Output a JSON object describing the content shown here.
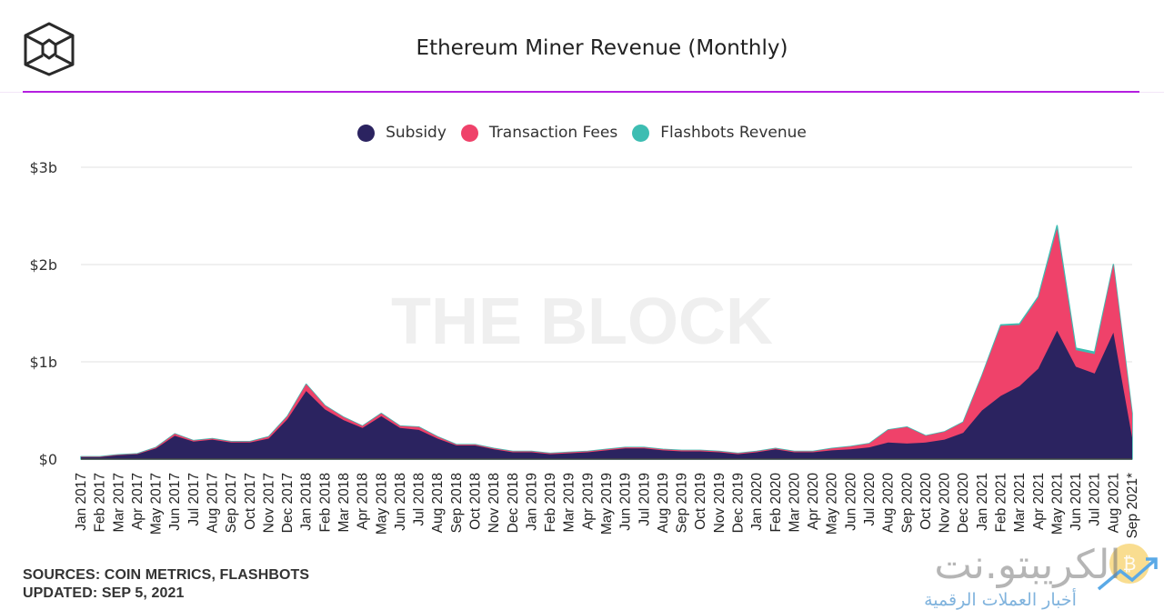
{
  "header": {
    "title": "Ethereum Miner Revenue (Monthly)",
    "logo_icon": "the-block-cube-icon"
  },
  "colors": {
    "subsidy": "#2b2360",
    "transaction_fees": "#ef426a",
    "flashbots": "#3dbdb2",
    "accent_rule": "#b41ee0"
  },
  "watermark": "THE BLOCK",
  "footer": {
    "sources": "SOURCES: COIN METRICS, FLASHBOTS",
    "updated": "UPDATED: SEP 5, 2021"
  },
  "overlay_watermark": {
    "name": "الكريبتو.نت",
    "tagline": "أخبار العملات الرقمية"
  },
  "chart_data": {
    "type": "area",
    "stacked": true,
    "title": "Ethereum Miner Revenue (Monthly)",
    "xlabel": "",
    "ylabel": "",
    "ylim": [
      0,
      3
    ],
    "y_unit": "$b",
    "y_ticks": [
      0,
      1,
      2,
      3
    ],
    "y_tick_labels": [
      "$0",
      "$1b",
      "$2b",
      "$3b"
    ],
    "grid": true,
    "legend_position": "top-center",
    "legend": [
      "Subsidy",
      "Transaction Fees",
      "Flashbots Revenue"
    ],
    "categories": [
      "Jan 2017",
      "Feb 2017",
      "Mar 2017",
      "Apr 2017",
      "May 2017",
      "Jun 2017",
      "Jul 2017",
      "Aug 2017",
      "Sep 2017",
      "Oct 2017",
      "Nov 2017",
      "Dec 2017",
      "Jan 2018",
      "Feb 2018",
      "Mar 2018",
      "Apr 2018",
      "May 2018",
      "Jun 2018",
      "Jul 2018",
      "Aug 2018",
      "Sep 2018",
      "Oct 2018",
      "Nov 2018",
      "Dec 2018",
      "Jan 2019",
      "Feb 2019",
      "Mar 2019",
      "Apr 2019",
      "May 2019",
      "Jun 2019",
      "Jul 2019",
      "Aug 2019",
      "Sep 2019",
      "Oct 2019",
      "Nov 2019",
      "Dec 2019",
      "Jan 2020",
      "Feb 2020",
      "Mar 2020",
      "Apr 2020",
      "May 2020",
      "Jun 2020",
      "Jul 2020",
      "Aug 2020",
      "Sep 2020",
      "Oct 2020",
      "Nov 2020",
      "Dec 2020",
      "Jan 2021",
      "Feb 2021",
      "Mar 2021",
      "Apr 2021",
      "May 2021",
      "Jun 2021",
      "Jul 2021",
      "Aug 2021",
      "Sep 2021*"
    ],
    "series": [
      {
        "name": "Subsidy",
        "values": [
          0.02,
          0.02,
          0.04,
          0.05,
          0.11,
          0.24,
          0.18,
          0.2,
          0.17,
          0.17,
          0.21,
          0.41,
          0.7,
          0.51,
          0.4,
          0.32,
          0.44,
          0.32,
          0.3,
          0.21,
          0.14,
          0.14,
          0.1,
          0.07,
          0.07,
          0.05,
          0.06,
          0.07,
          0.09,
          0.11,
          0.11,
          0.09,
          0.08,
          0.08,
          0.07,
          0.05,
          0.07,
          0.1,
          0.07,
          0.07,
          0.09,
          0.1,
          0.12,
          0.17,
          0.16,
          0.17,
          0.2,
          0.27,
          0.5,
          0.65,
          0.75,
          0.93,
          1.32,
          0.95,
          0.88,
          1.3,
          0.22
        ]
      },
      {
        "name": "Transaction Fees",
        "values": [
          0.005,
          0.005,
          0.005,
          0.005,
          0.01,
          0.02,
          0.01,
          0.01,
          0.01,
          0.01,
          0.02,
          0.03,
          0.07,
          0.04,
          0.03,
          0.02,
          0.03,
          0.02,
          0.03,
          0.02,
          0.01,
          0.01,
          0.01,
          0.01,
          0.01,
          0.01,
          0.01,
          0.01,
          0.01,
          0.01,
          0.01,
          0.01,
          0.01,
          0.01,
          0.01,
          0.01,
          0.01,
          0.01,
          0.01,
          0.01,
          0.02,
          0.03,
          0.04,
          0.13,
          0.17,
          0.07,
          0.08,
          0.11,
          0.36,
          0.72,
          0.63,
          0.73,
          1.05,
          0.17,
          0.2,
          0.7,
          0.25
        ]
      },
      {
        "name": "Flashbots Revenue",
        "values": [
          0,
          0,
          0,
          0,
          0,
          0,
          0,
          0,
          0,
          0,
          0,
          0,
          0,
          0,
          0,
          0,
          0,
          0,
          0,
          0,
          0,
          0,
          0,
          0,
          0,
          0,
          0,
          0,
          0,
          0,
          0,
          0,
          0,
          0,
          0,
          0,
          0,
          0,
          0,
          0,
          0,
          0,
          0,
          0,
          0,
          0,
          0,
          0,
          0,
          0.01,
          0.01,
          0.01,
          0.03,
          0.02,
          0.02,
          0,
          0
        ]
      }
    ]
  }
}
